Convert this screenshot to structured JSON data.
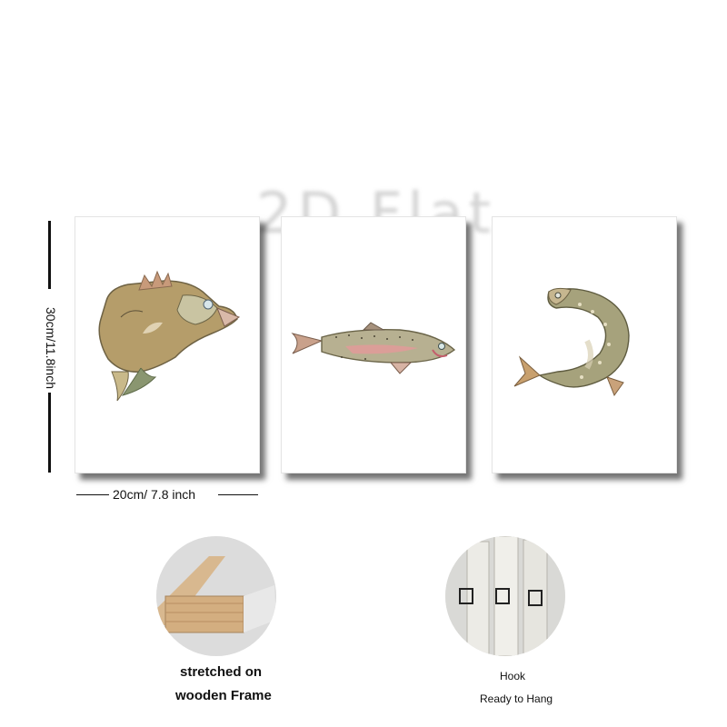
{
  "watermark": "2D Flat",
  "dimensions": {
    "height_label": "30cm/11.8inch",
    "width_label": "20cm/ 7.8 inch"
  },
  "paintings": [
    {
      "subject": "leaping bass"
    },
    {
      "subject": "rainbow trout"
    },
    {
      "subject": "curved pike"
    }
  ],
  "features": {
    "frame": {
      "line1": "stretched on",
      "line2": "wooden Frame"
    },
    "hook": {
      "line1": "Hook",
      "line2": "Ready to Hang"
    }
  }
}
